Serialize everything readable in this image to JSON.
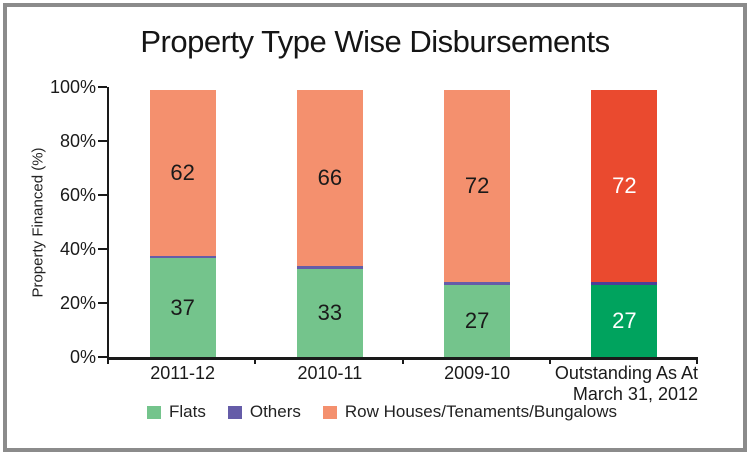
{
  "title": "Property Type Wise Disbursements",
  "y_axis": {
    "label": "Property Financed (%)",
    "ticks": [
      "100%",
      "80%",
      "60%",
      "40%",
      "20%",
      "0%"
    ]
  },
  "chart_data": {
    "type": "bar",
    "stacked": true,
    "title": "Property Type Wise Disbursements",
    "ylabel": "Property Financed (%)",
    "ylim": [
      0,
      100
    ],
    "grid": false,
    "legend_position": "bottom",
    "categories": [
      "2011-12",
      "2010-11",
      "2009-10",
      "Outstanding As At\nMarch 31, 2012"
    ],
    "series": [
      {
        "name": "Flats",
        "values": [
          37,
          33,
          27,
          27
        ],
        "color": "#74C48C",
        "highlight_color": "#00A35E"
      },
      {
        "name": "Others",
        "values": [
          1,
          1,
          1,
          1
        ],
        "color": "#655CA8",
        "highlight_color": "#4C3F97"
      },
      {
        "name": "Row Houses/Tenaments/Bungalows",
        "values": [
          62,
          66,
          72,
          72
        ],
        "color": "#F4906E",
        "highlight_color": "#EA4A2F"
      }
    ],
    "highlight_category_index": 3,
    "value_label_color": "#1a1a1a",
    "highlight_value_label_color": "#ffffff",
    "min_label_value": 5
  },
  "frame_color": "#8b8b8b",
  "axis_color": "#1a1a1a"
}
